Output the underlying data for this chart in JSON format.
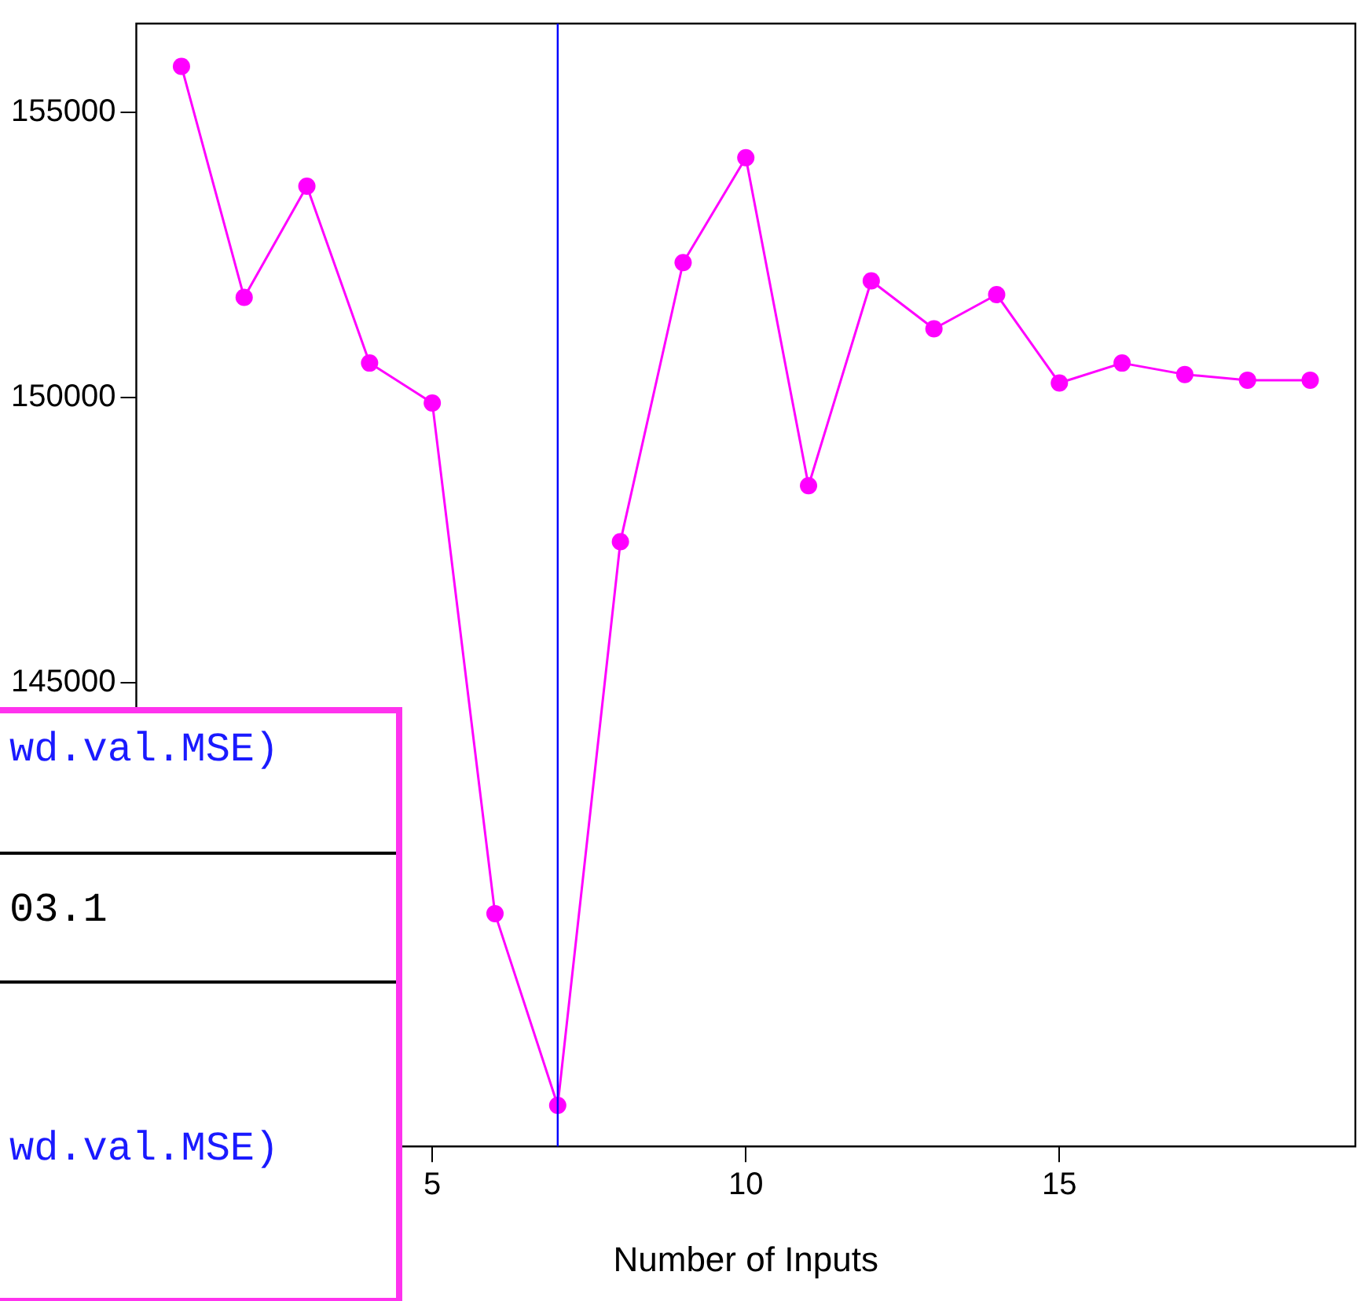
{
  "chart_data": {
    "type": "line",
    "xlabel": "Number of Inputs",
    "x": [
      1,
      2,
      3,
      4,
      5,
      6,
      7,
      8,
      9,
      10,
      11,
      12,
      13,
      14,
      15,
      16,
      17,
      18,
      19
    ],
    "series": [
      {
        "color": "#ff00ff",
        "values": [
          155800,
          151750,
          153700,
          150600,
          149900,
          140950,
          137590,
          147470,
          152360,
          154200,
          148450,
          152040,
          151200,
          151800,
          150250,
          150600,
          150400,
          150300,
          150300
        ]
      }
    ],
    "xlim": [
      0.28,
      19.72
    ],
    "xticks": [
      5,
      10,
      15
    ],
    "ylim": [
      136870,
      156550
    ],
    "yticks": [
      145000,
      150000,
      155000
    ],
    "ref_lines": [
      {
        "axis": "x",
        "value": 7,
        "color": "#0000ff"
      }
    ],
    "marker": "circle",
    "line_style": "solid",
    "grid": false,
    "legend": false,
    "annotations": [
      "wd.val.MSE)",
      "03.1",
      "wd.val.MSE)"
    ]
  }
}
